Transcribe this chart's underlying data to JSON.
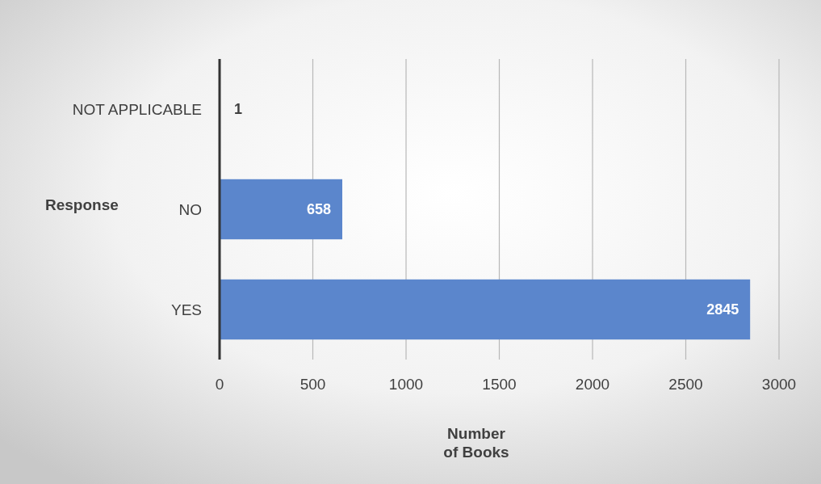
{
  "chart_data": {
    "type": "bar",
    "orientation": "horizontal",
    "categories": [
      "NOT APPLICABLE",
      "NO",
      "YES"
    ],
    "values": [
      1,
      658,
      2845
    ],
    "color": "#5b86cc",
    "xlim": [
      0,
      3000
    ],
    "xticks": [
      0,
      500,
      1000,
      1500,
      2000,
      2500,
      3000
    ],
    "xlabel": "Number\nof Books",
    "ylabel": "Response",
    "grid": "x",
    "data_labels": true
  }
}
